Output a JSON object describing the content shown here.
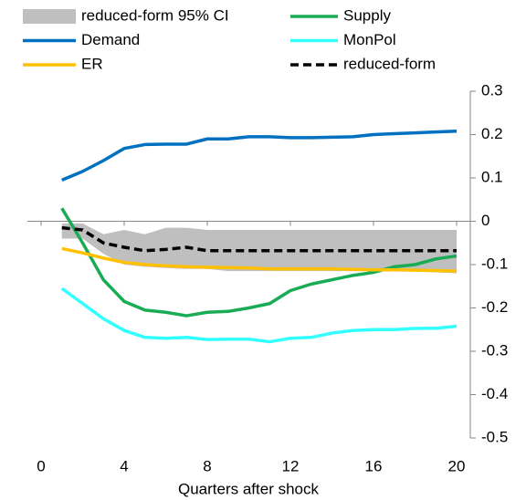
{
  "chart_data": {
    "type": "line",
    "x_label": "Quarters after shock",
    "x": [
      1,
      2,
      3,
      4,
      5,
      6,
      7,
      8,
      9,
      10,
      11,
      12,
      13,
      14,
      15,
      16,
      17,
      18,
      19,
      20
    ],
    "xlim": [
      0,
      20
    ],
    "xticks": [
      0,
      4,
      8,
      12,
      16,
      20
    ],
    "ylim": [
      -0.5,
      0.3
    ],
    "yticks": [
      -0.5,
      -0.4,
      -0.3,
      -0.2,
      -0.1,
      0,
      0.1,
      0.2,
      0.3
    ],
    "y_axis_side": "right",
    "band": {
      "name": "reduced-form 95% CI",
      "color": "#bfbfbf",
      "upper": [
        -0.005,
        -0.005,
        -0.03,
        -0.02,
        -0.03,
        -0.015,
        -0.015,
        -0.02,
        -0.02,
        -0.02,
        -0.02,
        -0.02,
        -0.02,
        -0.02,
        -0.02,
        -0.02,
        -0.02,
        -0.02,
        -0.02,
        -0.02
      ],
      "lower": [
        -0.04,
        -0.04,
        -0.075,
        -0.1,
        -0.105,
        -0.108,
        -0.11,
        -0.11,
        -0.115,
        -0.115,
        -0.115,
        -0.115,
        -0.115,
        -0.115,
        -0.115,
        -0.115,
        -0.115,
        -0.115,
        -0.118,
        -0.12
      ]
    },
    "series": [
      {
        "name": "Supply",
        "color": "#1aab55",
        "values": [
          0.03,
          -0.05,
          -0.135,
          -0.185,
          -0.205,
          -0.21,
          -0.218,
          -0.21,
          -0.208,
          -0.2,
          -0.19,
          -0.16,
          -0.145,
          -0.135,
          -0.125,
          -0.118,
          -0.105,
          -0.1,
          -0.087,
          -0.08
        ]
      },
      {
        "name": "Demand",
        "color": "#0070c0",
        "values": [
          0.095,
          0.115,
          0.14,
          0.168,
          0.177,
          0.178,
          0.178,
          0.19,
          0.19,
          0.195,
          0.195,
          0.193,
          0.193,
          0.194,
          0.195,
          0.2,
          0.202,
          0.204,
          0.206,
          0.208
        ]
      },
      {
        "name": "MonPol",
        "color": "#33ffff",
        "values": [
          -0.155,
          -0.19,
          -0.225,
          -0.252,
          -0.268,
          -0.27,
          -0.268,
          -0.273,
          -0.272,
          -0.272,
          -0.278,
          -0.27,
          -0.268,
          -0.258,
          -0.252,
          -0.25,
          -0.25,
          -0.247,
          -0.247,
          -0.242
        ]
      },
      {
        "name": "ER",
        "color": "#ffc000",
        "values": [
          -0.063,
          -0.073,
          -0.085,
          -0.095,
          -0.1,
          -0.103,
          -0.105,
          -0.106,
          -0.107,
          -0.108,
          -0.11,
          -0.11,
          -0.11,
          -0.11,
          -0.111,
          -0.112,
          -0.112,
          -0.113,
          -0.114,
          -0.115
        ]
      },
      {
        "name": "reduced-form",
        "color": "#000000",
        "dashed": true,
        "values": [
          -0.015,
          -0.02,
          -0.05,
          -0.06,
          -0.068,
          -0.065,
          -0.06,
          -0.068,
          -0.068,
          -0.068,
          -0.068,
          -0.068,
          -0.068,
          -0.068,
          -0.068,
          -0.068,
          -0.068,
          -0.068,
          -0.068,
          -0.068
        ]
      }
    ]
  }
}
